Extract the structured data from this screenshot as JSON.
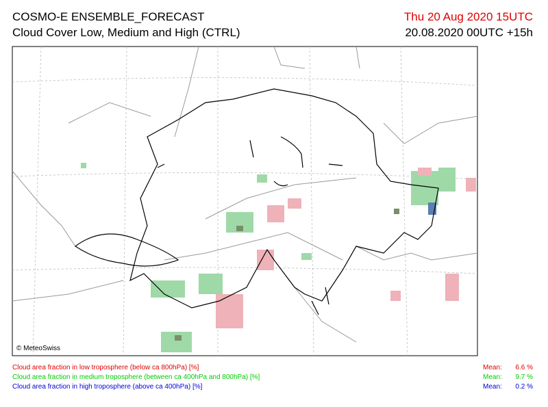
{
  "header": {
    "title": "COSMO-E ENSEMBLE_FORECAST",
    "subtitle": "Cloud Cover Low, Medium and High (CTRL)",
    "valid_time": "Thu 20 Aug 2020 15UTC",
    "run": "20.08.2020 00UTC +15h"
  },
  "map": {
    "copyright": "© MeteoSwiss"
  },
  "legend": [
    {
      "label": "Cloud area fraction in low troposphere (below ca 800hPa) [%]",
      "mean_label": "Mean:",
      "mean": "6.6 %",
      "color": "#e00000"
    },
    {
      "label": "Cloud area fraction in medium troposphere (between ca 400hPa and 800hPa) [%]",
      "mean_label": "Mean:",
      "mean": "9.7 %",
      "color": "#00cc00"
    },
    {
      "label": "Cloud area fraction in high troposphere (above ca 400hPa) [%]",
      "mean_label": "Mean:",
      "mean": "0.2 %",
      "color": "#0000dd"
    }
  ]
}
